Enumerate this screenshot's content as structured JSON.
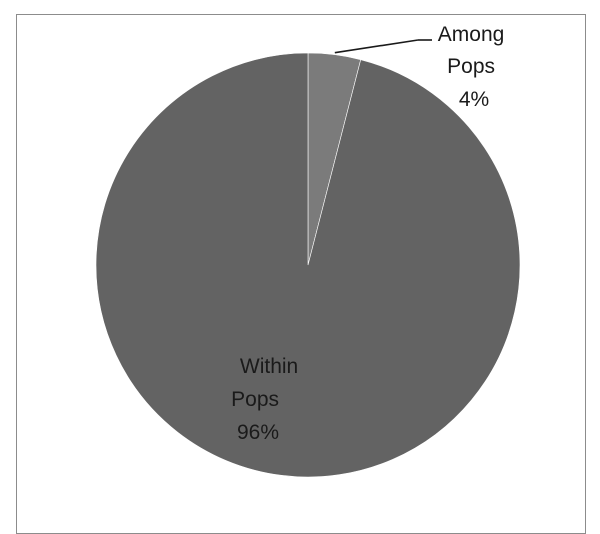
{
  "chart_data": {
    "type": "pie",
    "title": "",
    "slices": [
      {
        "label_lines": [
          "Among",
          "Pops",
          "4%"
        ],
        "value": 4,
        "color": "#7b7b7b"
      },
      {
        "label_lines": [
          "Within",
          "Pops",
          "96%"
        ],
        "value": 96,
        "color": "#636363"
      }
    ],
    "start_angle_deg": 0,
    "direction": "clockwise",
    "legend": "none",
    "border_color": "#8c8c8c"
  }
}
